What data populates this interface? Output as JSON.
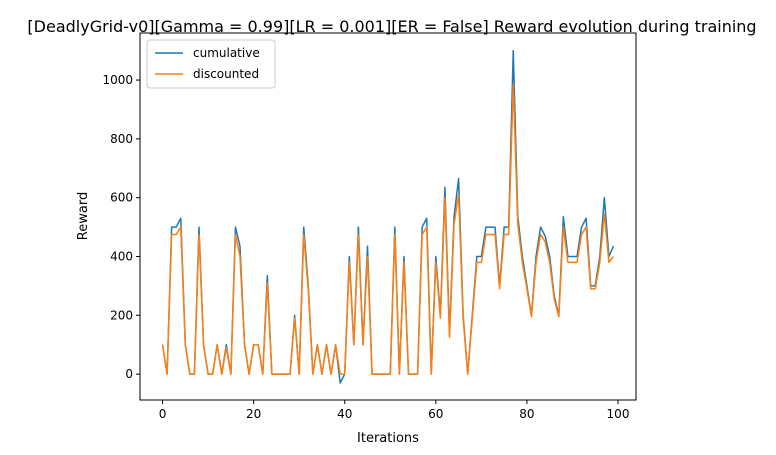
{
  "chart_data": {
    "type": "line",
    "title": "[DeadlyGrid-v0][Gamma = 0.99][LR = 0.001][ER = False] Reward evolution during training",
    "xlabel": "Iterations",
    "ylabel": "Reward",
    "xlim": [
      -4.95,
      103.95
    ],
    "ylim": [
      -88,
      1160
    ],
    "xticks": [
      0,
      20,
      40,
      60,
      80,
      100
    ],
    "yticks": [
      0,
      200,
      400,
      600,
      800,
      1000
    ],
    "legend_position": "top-left",
    "grid": false,
    "x": [
      0,
      1,
      2,
      3,
      4,
      5,
      6,
      7,
      8,
      9,
      10,
      11,
      12,
      13,
      14,
      15,
      16,
      17,
      18,
      19,
      20,
      21,
      22,
      23,
      24,
      25,
      26,
      27,
      28,
      29,
      30,
      31,
      32,
      33,
      34,
      35,
      36,
      37,
      38,
      39,
      40,
      41,
      42,
      43,
      44,
      45,
      46,
      47,
      48,
      49,
      50,
      51,
      52,
      53,
      54,
      55,
      56,
      57,
      58,
      59,
      60,
      61,
      62,
      63,
      64,
      65,
      66,
      67,
      68,
      69,
      70,
      71,
      72,
      73,
      74,
      75,
      76,
      77,
      78,
      79,
      80,
      81,
      82,
      83,
      84,
      85,
      86,
      87,
      88,
      89,
      90,
      91,
      92,
      93,
      94,
      95,
      96,
      97,
      98,
      99
    ],
    "series": [
      {
        "name": "cumulative",
        "color": "#1f77b4",
        "values": [
          100,
          0,
          500,
          500,
          530,
          100,
          0,
          0,
          500,
          100,
          0,
          0,
          100,
          0,
          100,
          0,
          500,
          435,
          100,
          0,
          100,
          100,
          0,
          335,
          0,
          0,
          0,
          0,
          0,
          200,
          0,
          500,
          300,
          0,
          100,
          0,
          100,
          0,
          100,
          -30,
          0,
          400,
          100,
          500,
          100,
          435,
          0,
          0,
          0,
          0,
          0,
          500,
          0,
          400,
          0,
          0,
          0,
          500,
          530,
          0,
          400,
          200,
          635,
          135,
          535,
          665,
          200,
          0,
          200,
          400,
          400,
          500,
          500,
          500,
          300,
          500,
          500,
          1100,
          535,
          400,
          300,
          200,
          400,
          500,
          470,
          400,
          265,
          200,
          535,
          400,
          400,
          400,
          500,
          530,
          300,
          300,
          400,
          600,
          400,
          435
        ]
      },
      {
        "name": "discounted",
        "color": "#ff7f0e",
        "values": [
          100,
          0,
          475,
          475,
          500,
          100,
          0,
          0,
          475,
          100,
          0,
          0,
          100,
          0,
          90,
          0,
          475,
          400,
          100,
          0,
          100,
          100,
          0,
          310,
          0,
          0,
          0,
          0,
          0,
          190,
          0,
          475,
          285,
          0,
          100,
          0,
          100,
          0,
          100,
          0,
          0,
          380,
          100,
          475,
          100,
          400,
          0,
          0,
          0,
          0,
          0,
          475,
          0,
          380,
          0,
          0,
          0,
          475,
          500,
          0,
          380,
          190,
          600,
          125,
          510,
          610,
          190,
          0,
          190,
          380,
          380,
          475,
          475,
          475,
          290,
          475,
          475,
          985,
          510,
          380,
          290,
          195,
          380,
          475,
          450,
          380,
          255,
          195,
          500,
          380,
          380,
          380,
          475,
          500,
          290,
          290,
          380,
          545,
          380,
          400
        ]
      }
    ]
  }
}
